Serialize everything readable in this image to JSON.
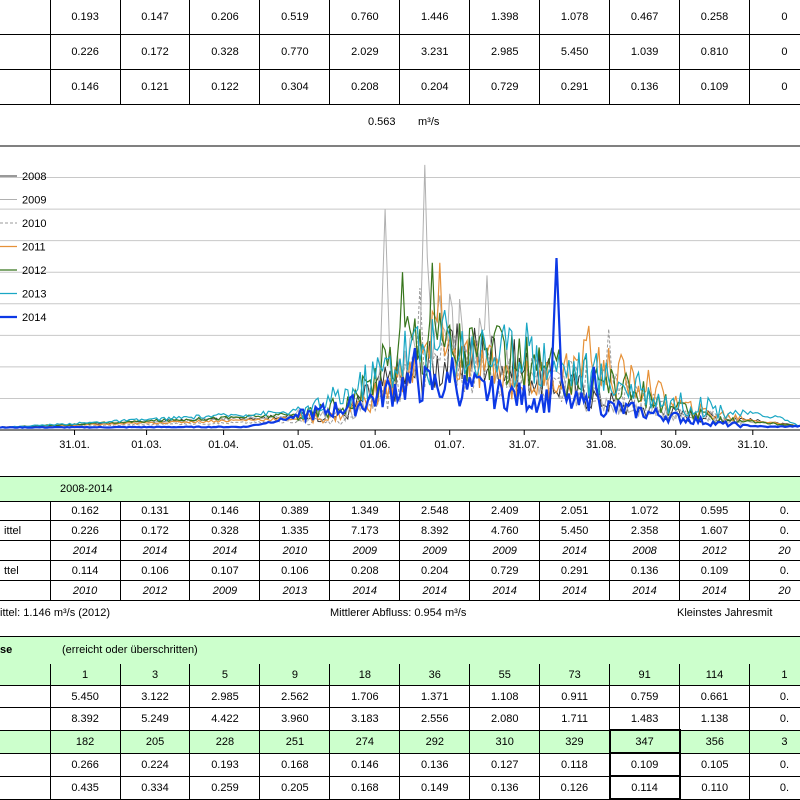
{
  "top_table": {
    "rows": [
      [
        "0.193",
        "0.147",
        "0.206",
        "0.519",
        "0.760",
        "1.446",
        "1.398",
        "1.078",
        "0.467",
        "0.258",
        "0"
      ],
      [
        "0.226",
        "0.172",
        "0.328",
        "0.770",
        "2.029",
        "3.231",
        "2.985",
        "5.450",
        "1.039",
        "0.810",
        "0"
      ],
      [
        "0.146",
        "0.121",
        "0.122",
        "0.304",
        "0.208",
        "0.204",
        "0.729",
        "0.291",
        "0.136",
        "0.109",
        "0"
      ]
    ]
  },
  "mean": {
    "value": "0.563",
    "unit": "m³/s"
  },
  "chart_data": {
    "type": "line",
    "x_tick_labels": [
      "31.01.",
      "01.03.",
      "01.04.",
      "01.05.",
      "01.06.",
      "01.07.",
      "31.07.",
      "31.08.",
      "30.09.",
      "31.10."
    ],
    "x_tick_days": [
      31,
      60,
      91,
      121,
      152,
      182,
      212,
      243,
      273,
      304
    ],
    "x_range_days": [
      1,
      323
    ],
    "y_range": [
      0,
      9
    ],
    "gridlines": true,
    "legend_position": "top-left",
    "series": [
      {
        "name": "2008",
        "color": "#333333",
        "width": 1,
        "dash": "",
        "peaks": [
          [
            140,
            0.5
          ],
          [
            152,
            1.3
          ],
          [
            170,
            1.9
          ],
          [
            190,
            2.5
          ],
          [
            205,
            2.1
          ],
          [
            225,
            1.5
          ],
          [
            250,
            0.8
          ],
          [
            275,
            0.5
          ],
          [
            300,
            0.35
          ]
        ],
        "spikes": [
          [
            200,
            2.9
          ],
          [
            235,
            1.8
          ]
        ]
      },
      {
        "name": "2009",
        "color": "#b0b0b0",
        "width": 1,
        "dash": "",
        "peaks": [
          [
            140,
            0.5
          ],
          [
            155,
            1.2
          ],
          [
            175,
            3.5
          ],
          [
            195,
            2.5
          ],
          [
            215,
            1.6
          ],
          [
            240,
            1.0
          ],
          [
            270,
            0.55
          ],
          [
            300,
            0.3
          ]
        ],
        "spikes": [
          [
            156,
            7.0
          ],
          [
            172,
            8.4
          ],
          [
            197,
            4.9
          ]
        ]
      },
      {
        "name": "2010",
        "color": "#999999",
        "width": 1,
        "dash": "3,2",
        "peaks": [
          [
            140,
            0.3
          ],
          [
            160,
            1.3
          ],
          [
            180,
            2.3
          ],
          [
            200,
            1.8
          ],
          [
            220,
            1.6
          ],
          [
            245,
            1.4
          ],
          [
            270,
            0.6
          ],
          [
            300,
            0.3
          ]
        ],
        "spikes": [
          [
            170,
            4.5
          ],
          [
            246,
            3.2
          ]
        ]
      },
      {
        "name": "2011",
        "color": "#e69138",
        "width": 1.2,
        "dash": "",
        "peaks": [
          [
            135,
            0.4
          ],
          [
            155,
            1.2
          ],
          [
            175,
            2.6
          ],
          [
            195,
            2.0
          ],
          [
            215,
            1.5
          ],
          [
            240,
            2.1
          ],
          [
            260,
            1.3
          ],
          [
            280,
            0.6
          ],
          [
            305,
            0.3
          ]
        ],
        "spikes": [
          [
            178,
            5.3
          ],
          [
            238,
            3.3
          ],
          [
            262,
            1.9
          ]
        ]
      },
      {
        "name": "2012",
        "color": "#38761d",
        "width": 1.2,
        "dash": "",
        "peaks": [
          [
            125,
            0.5
          ],
          [
            145,
            1.0
          ],
          [
            165,
            3.0
          ],
          [
            185,
            2.7
          ],
          [
            205,
            2.2
          ],
          [
            225,
            1.8
          ],
          [
            245,
            1.6
          ],
          [
            265,
            0.9
          ],
          [
            285,
            0.4
          ],
          [
            305,
            0.25
          ]
        ],
        "spikes": [
          [
            163,
            5.0
          ],
          [
            175,
            5.3
          ],
          [
            210,
            2.9
          ]
        ]
      },
      {
        "name": "2013",
        "color": "#1aa7c4",
        "width": 1.2,
        "dash": "",
        "peaks": [
          [
            125,
            0.6
          ],
          [
            145,
            1.3
          ],
          [
            165,
            2.5
          ],
          [
            185,
            2.6
          ],
          [
            205,
            2.4
          ],
          [
            225,
            2.1
          ],
          [
            250,
            1.5
          ],
          [
            270,
            0.9
          ],
          [
            295,
            0.6
          ],
          [
            315,
            0.4
          ]
        ],
        "spikes": [
          [
            180,
            3.8
          ],
          [
            213,
            3.4
          ]
        ]
      },
      {
        "name": "2014",
        "color": "#0d39e6",
        "width": 2.2,
        "dash": "",
        "peaks": [
          [
            100,
            0.1
          ],
          [
            125,
            0.5
          ],
          [
            145,
            0.8
          ],
          [
            165,
            1.5
          ],
          [
            190,
            1.3
          ],
          [
            215,
            1.0
          ],
          [
            240,
            0.8
          ],
          [
            265,
            0.5
          ],
          [
            290,
            0.2
          ],
          [
            310,
            0.1
          ]
        ],
        "spikes": [
          [
            168,
            2.6
          ],
          [
            183,
            2.3
          ],
          [
            225,
            5.45
          ],
          [
            240,
            2.0
          ]
        ]
      }
    ]
  },
  "stats": {
    "title": "2008-2014",
    "rows": [
      {
        "label": "",
        "values": [
          "0.162",
          "0.131",
          "0.146",
          "0.389",
          "1.349",
          "2.548",
          "2.409",
          "2.051",
          "1.072",
          "0.595",
          "0."
        ]
      },
      {
        "label": "ittel",
        "values": [
          "0.226",
          "0.172",
          "0.328",
          "1.335",
          "7.173",
          "8.392",
          "4.760",
          "5.450",
          "2.358",
          "1.607",
          "0."
        ]
      },
      {
        "label": "",
        "values": [
          "2014",
          "2014",
          "2014",
          "2010",
          "2009",
          "2009",
          "2009",
          "2014",
          "2008",
          "2012",
          "20"
        ],
        "year": true
      },
      {
        "label": "ttel",
        "values": [
          "0.114",
          "0.106",
          "0.107",
          "0.106",
          "0.208",
          "0.204",
          "0.729",
          "0.291",
          "0.136",
          "0.109",
          "0."
        ]
      },
      {
        "label": "",
        "values": [
          "2010",
          "2012",
          "2009",
          "2013",
          "2014",
          "2014",
          "2014",
          "2014",
          "2014",
          "2014",
          "20"
        ],
        "year": true
      }
    ]
  },
  "summary": {
    "left": "ittel:  1.146 m³/s (2012)",
    "middle": "Mittlerer Abfluss:  0.954 m³/s",
    "right": "Kleinstes Jahresmit"
  },
  "duration": {
    "title": "se",
    "subtitle": "(erreicht oder überschritten)",
    "rows": [
      {
        "values": [
          "1",
          "3",
          "5",
          "9",
          "18",
          "36",
          "55",
          "73",
          "91",
          "114",
          "1"
        ],
        "green": true
      },
      {
        "values": [
          "5.450",
          "3.122",
          "2.985",
          "2.562",
          "1.706",
          "1.371",
          "1.108",
          "0.911",
          "0.759",
          "0.661",
          "0."
        ]
      },
      {
        "values": [
          "8.392",
          "5.249",
          "4.422",
          "3.960",
          "3.183",
          "2.556",
          "2.080",
          "1.711",
          "1.483",
          "1.138",
          "0."
        ]
      },
      {
        "values": [
          "182",
          "205",
          "228",
          "251",
          "274",
          "292",
          "310",
          "329",
          "347",
          "356",
          "3"
        ],
        "green": true,
        "highlight": 8
      },
      {
        "values": [
          "0.266",
          "0.224",
          "0.193",
          "0.168",
          "0.146",
          "0.136",
          "0.127",
          "0.118",
          "0.109",
          "0.105",
          "0."
        ],
        "highlight": 8
      },
      {
        "values": [
          "0.435",
          "0.334",
          "0.259",
          "0.205",
          "0.168",
          "0.149",
          "0.136",
          "0.126",
          "0.114",
          "0.110",
          "0."
        ],
        "highlight": 8
      }
    ]
  }
}
